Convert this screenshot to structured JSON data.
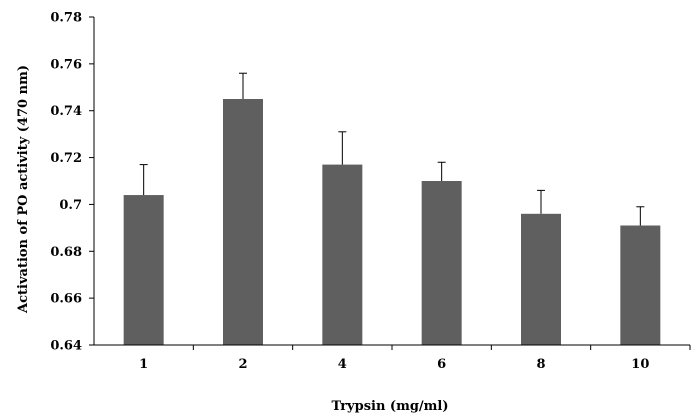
{
  "chart_data": {
    "type": "bar",
    "title": "",
    "xlabel": "Trypsin (mg/ml)",
    "ylabel": "Activation of PO activity (470 nm)",
    "categories": [
      "1",
      "2",
      "4",
      "6",
      "8",
      "10"
    ],
    "values": [
      0.704,
      0.745,
      0.717,
      0.71,
      0.696,
      0.691
    ],
    "error_upper": [
      0.717,
      0.756,
      0.731,
      0.718,
      0.706,
      0.699
    ],
    "ylim": [
      0.64,
      0.78
    ],
    "yticks": [
      "0.64",
      "0.66",
      "0.68",
      "0.7",
      "0.72",
      "0.74",
      "0.76",
      "0.78"
    ],
    "grid": false,
    "legend": false,
    "bar_color": "#5f5f5f"
  }
}
